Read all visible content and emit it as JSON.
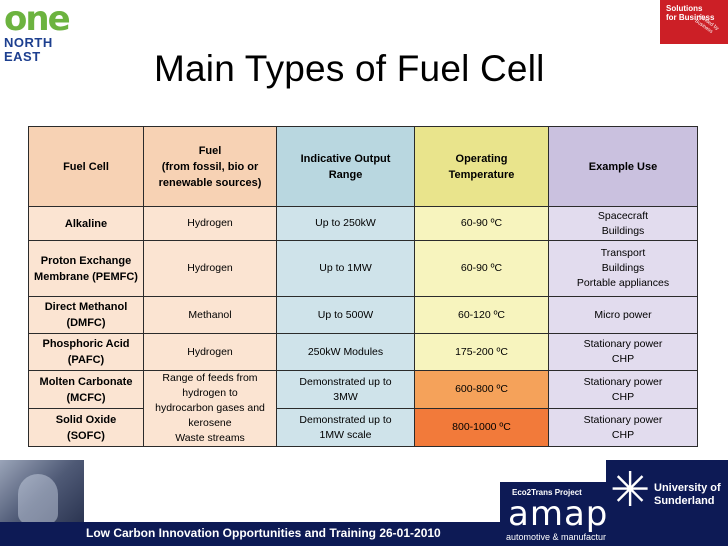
{
  "logo": {
    "one": "one",
    "northeast": "NORTH EAST"
  },
  "badge": {
    "line1": "Solutions",
    "line2": "for Business",
    "sub": "Funded by Business"
  },
  "title": "Main Types of Fuel Cell",
  "table": {
    "headers": [
      "Fuel Cell",
      [
        "Fuel",
        "(from fossil, bio or",
        "renewable sources)"
      ],
      [
        "Indicative Output",
        "Range"
      ],
      [
        "Operating",
        "Temperature"
      ],
      "Example Use"
    ],
    "rows": [
      {
        "name": [
          "Alkaline"
        ],
        "fuel": [
          "Hydrogen"
        ],
        "output": [
          "Up to 250kW"
        ],
        "temp": [
          "60-90 ºC"
        ],
        "use": [
          "Spacecraft",
          "Buildings"
        ]
      },
      {
        "name": [
          "Proton Exchange",
          "Membrane (PEMFC)"
        ],
        "fuel": [
          "Hydrogen"
        ],
        "output": [
          "Up to 1MW"
        ],
        "temp": [
          "60-90 ºC"
        ],
        "use": [
          "Transport",
          "Buildings",
          "Portable appliances"
        ]
      },
      {
        "name": [
          "Direct Methanol",
          "(DMFC)"
        ],
        "fuel": [
          "Methanol"
        ],
        "output": [
          "Up to 500W"
        ],
        "temp": [
          "60-120 ºC"
        ],
        "use": [
          "Micro power"
        ]
      },
      {
        "name": [
          "Phosphoric Acid",
          "(PAFC)"
        ],
        "fuel": [
          "Hydrogen"
        ],
        "output": [
          "250kW Modules"
        ],
        "temp": [
          "175-200 ºC"
        ],
        "use": [
          "Stationary power",
          "CHP"
        ]
      },
      {
        "name": [
          "Molten Carbonate",
          "(MCFC)"
        ],
        "output": [
          "Demonstrated up to",
          "3MW"
        ],
        "temp": [
          "600-800 ºC"
        ],
        "use": [
          "Stationary power",
          "CHP"
        ]
      },
      {
        "name": [
          "Solid Oxide",
          "(SOFC)"
        ],
        "output": [
          "Demonstrated up to",
          "1MW scale"
        ],
        "temp": [
          "800-1000 ºC"
        ],
        "use": [
          "Stationary power",
          "CHP"
        ]
      }
    ],
    "merged_fuel": [
      "Range of feeds from",
      "hydrogen to",
      "hydrocarbon gases and",
      "kerosene",
      "Waste streams"
    ]
  },
  "footer": {
    "text": "Low Carbon Innovation Opportunities and Training 26-01-2010",
    "eco": "Eco2Trans Project",
    "amap": "amap",
    "amap_sub": "automotive & manufacturing advanced practice",
    "uni": [
      "University of",
      "Sunderland"
    ]
  },
  "colors": {
    "header_fuel": "#f7d2b4",
    "header_output": "#b9d7e0",
    "header_temp": "#e9e48c",
    "header_use": "#cac1df",
    "temp_hot_mcfc": "#f5a25a",
    "temp_hot_sofc": "#f27a3a",
    "footer_bar": "#0d1a55"
  }
}
